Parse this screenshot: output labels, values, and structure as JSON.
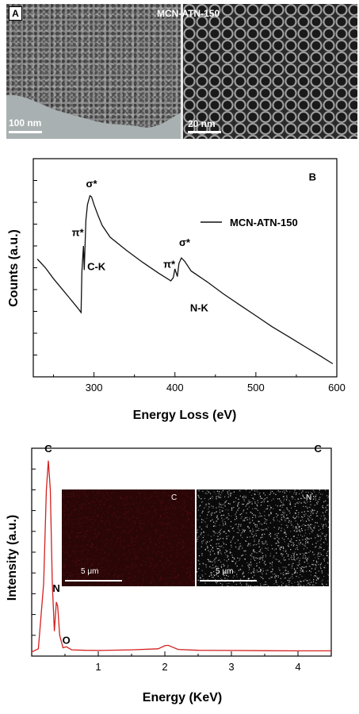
{
  "panel_a": {
    "tag": "A",
    "title": "MCN-ATN-150",
    "scale_left": "100 nm",
    "scale_right": "20 nm"
  },
  "colors": {
    "eels_line": "#111111",
    "eds_line": "#d32020",
    "map_c": "#5a0f12",
    "map_n": "#e6e6e6"
  },
  "chart_data": [
    {
      "type": "line",
      "panel": "B",
      "xlabel": "Energy Loss (eV)",
      "ylabel": "Counts (a.u.)",
      "xlim": [
        225,
        600
      ],
      "ylim": [
        0,
        10
      ],
      "x_ticks": [
        300,
        400,
        500,
        600
      ],
      "x_tick_labels": [
        "300",
        "400",
        "500",
        "600"
      ],
      "y_tick_labels_shown": false,
      "legend": "MCN-ATN-150",
      "legend_position": "top-right",
      "series": [
        {
          "name": "MCN-ATN-150",
          "x": [
            230,
            240,
            250,
            260,
            270,
            280,
            284,
            285,
            287,
            288,
            290,
            292,
            295,
            297,
            300,
            305,
            310,
            320,
            340,
            360,
            380,
            395,
            398,
            400,
            403,
            405,
            408,
            412,
            420,
            440,
            460,
            480,
            500,
            520,
            540,
            560,
            580,
            595
          ],
          "y": [
            5.4,
            5.0,
            4.5,
            4.05,
            3.6,
            3.15,
            2.95,
            4.8,
            6.0,
            4.9,
            7.2,
            7.9,
            8.3,
            8.25,
            7.9,
            7.4,
            6.95,
            6.4,
            5.8,
            5.25,
            4.75,
            4.4,
            4.55,
            4.95,
            4.6,
            5.2,
            5.45,
            5.3,
            4.85,
            4.35,
            3.8,
            3.3,
            2.8,
            2.3,
            1.85,
            1.4,
            0.95,
            0.6
          ]
        }
      ],
      "annotations": [
        {
          "text": "σ*",
          "x": 297,
          "y": 8.7
        },
        {
          "text": "π*",
          "x": 280,
          "y": 6.45
        },
        {
          "text": "C-K",
          "x": 303,
          "y": 4.9
        },
        {
          "text": "π*",
          "x": 393,
          "y": 5.0
        },
        {
          "text": "σ*",
          "x": 412,
          "y": 6.0
        },
        {
          "text": "N-K",
          "x": 430,
          "y": 3.0
        },
        {
          "text": "B",
          "x": 570,
          "y": 9.0
        }
      ]
    },
    {
      "type": "line",
      "panel": "C",
      "xlabel": "Energy (KeV)",
      "ylabel": "Intensity (a.u.)",
      "xlim": [
        0,
        4.5
      ],
      "ylim": [
        0,
        10
      ],
      "x_ticks": [
        1,
        2,
        3,
        4
      ],
      "x_tick_labels": [
        "1",
        "2",
        "3",
        "4"
      ],
      "y_tick_labels_shown": false,
      "series": [
        {
          "name": "",
          "x": [
            0.0,
            0.1,
            0.18,
            0.22,
            0.25,
            0.28,
            0.31,
            0.34,
            0.37,
            0.39,
            0.42,
            0.47,
            0.52,
            0.6,
            0.8,
            1.0,
            1.5,
            1.9,
            2.0,
            2.05,
            2.1,
            2.2,
            2.5,
            3.0,
            3.5,
            4.0,
            4.5
          ],
          "y": [
            0.2,
            0.35,
            3.5,
            8.0,
            9.4,
            8.0,
            3.5,
            1.2,
            2.6,
            2.4,
            1.0,
            0.4,
            0.45,
            0.3,
            0.28,
            0.27,
            0.3,
            0.35,
            0.5,
            0.52,
            0.45,
            0.32,
            0.28,
            0.27,
            0.26,
            0.25,
            0.25
          ]
        }
      ],
      "annotations": [
        {
          "text": "C",
          "x": 0.25,
          "y": 9.8
        },
        {
          "text": "N",
          "x": 0.37,
          "y": 3.1
        },
        {
          "text": "O",
          "x": 0.52,
          "y": 0.6
        },
        {
          "text": "C",
          "x": 4.3,
          "y": 9.8
        }
      ]
    }
  ],
  "eds_maps": [
    {
      "label": "C",
      "scale": "5 μm"
    },
    {
      "label": "N",
      "scale": "5 μm"
    }
  ]
}
